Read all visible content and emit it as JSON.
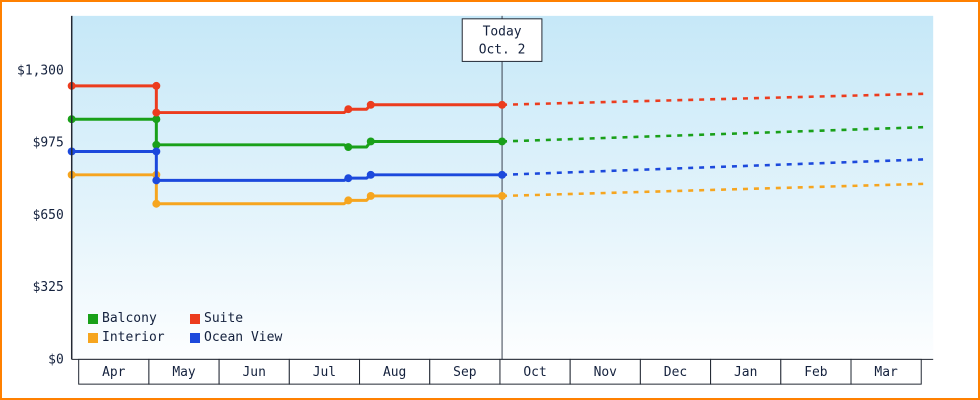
{
  "window": {
    "frame_border_color": "#ff8000",
    "plot_gradient_top": "#c6e8f8",
    "plot_gradient_bottom": "#fdfeff",
    "axis_color": "#222833",
    "text_color": "#14213d"
  },
  "chart_data": {
    "type": "line",
    "x_axis": {
      "tick_labels": [
        "Apr",
        "May",
        "Jun",
        "Jul",
        "Aug",
        "Sep",
        "Oct",
        "Nov",
        "Dec",
        "Jan",
        "Feb",
        "Mar"
      ]
    },
    "y_axis": {
      "tick_values": [
        0,
        325,
        650,
        975,
        1300
      ],
      "tick_labels": [
        "$0",
        "$325",
        "$650",
        "$975",
        "$1,300"
      ],
      "ylim": [
        0,
        1545
      ]
    },
    "today_marker": {
      "line1": "Today",
      "line2": "Oct. 2",
      "month_offset": 6.03
    },
    "legend_position": "bottom-left",
    "series": [
      {
        "name": "Balcony",
        "color": "#19a019",
        "solid_points": [
          [
            -0.1,
            1080
          ],
          [
            1.106,
            1080
          ],
          [
            1.106,
            965
          ],
          [
            3.78,
            965
          ],
          [
            3.84,
            955
          ],
          [
            4.1,
            955
          ],
          [
            4.16,
            980
          ],
          [
            6.03,
            980
          ]
        ],
        "dashed_points": [
          [
            6.03,
            980
          ],
          [
            12.1,
            1045
          ]
        ],
        "markers": [
          [
            -0.1,
            1080
          ],
          [
            1.106,
            1080
          ],
          [
            1.106,
            965
          ],
          [
            3.84,
            955
          ],
          [
            4.16,
            980
          ],
          [
            6.03,
            980
          ]
        ]
      },
      {
        "name": "Suite",
        "color": "#ec3c1e",
        "solid_points": [
          [
            -0.1,
            1230
          ],
          [
            1.106,
            1230
          ],
          [
            1.106,
            1110
          ],
          [
            3.78,
            1110
          ],
          [
            3.84,
            1125
          ],
          [
            4.1,
            1125
          ],
          [
            4.16,
            1145
          ],
          [
            6.03,
            1145
          ]
        ],
        "dashed_points": [
          [
            6.03,
            1145
          ],
          [
            12.1,
            1195
          ]
        ],
        "markers": [
          [
            -0.1,
            1230
          ],
          [
            1.106,
            1230
          ],
          [
            1.106,
            1110
          ],
          [
            3.84,
            1125
          ],
          [
            4.16,
            1145
          ],
          [
            6.03,
            1145
          ]
        ]
      },
      {
        "name": "Interior",
        "color": "#f6a51f",
        "solid_points": [
          [
            -0.1,
            830
          ],
          [
            1.106,
            830
          ],
          [
            1.106,
            700
          ],
          [
            3.78,
            700
          ],
          [
            3.84,
            715
          ],
          [
            4.1,
            715
          ],
          [
            4.16,
            735
          ],
          [
            6.03,
            735
          ]
        ],
        "dashed_points": [
          [
            6.03,
            735
          ],
          [
            12.1,
            790
          ]
        ],
        "markers": [
          [
            -0.1,
            830
          ],
          [
            1.106,
            830
          ],
          [
            1.106,
            700
          ],
          [
            3.84,
            715
          ],
          [
            4.16,
            735
          ],
          [
            6.03,
            735
          ]
        ]
      },
      {
        "name": "Ocean View",
        "color": "#1c49dc",
        "solid_points": [
          [
            -0.1,
            935
          ],
          [
            1.106,
            935
          ],
          [
            1.106,
            805
          ],
          [
            3.78,
            805
          ],
          [
            3.84,
            815
          ],
          [
            4.1,
            815
          ],
          [
            4.16,
            830
          ],
          [
            6.03,
            830
          ]
        ],
        "dashed_points": [
          [
            6.03,
            830
          ],
          [
            12.1,
            900
          ]
        ],
        "markers": [
          [
            -0.1,
            935
          ],
          [
            1.106,
            935
          ],
          [
            1.106,
            805
          ],
          [
            3.84,
            815
          ],
          [
            4.16,
            830
          ],
          [
            6.03,
            830
          ]
        ]
      }
    ]
  }
}
